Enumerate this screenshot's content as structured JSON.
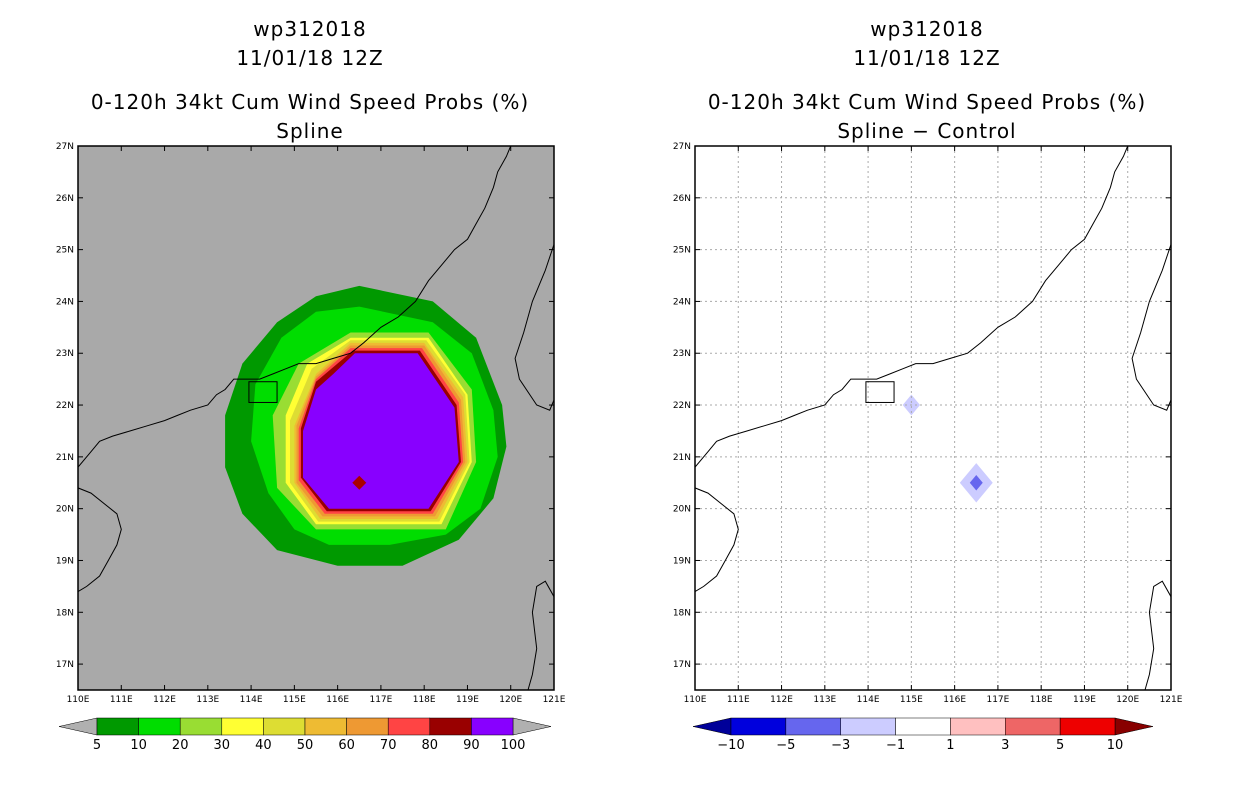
{
  "chart_data": [
    {
      "type": "heatmap",
      "storm_id": "wp312018",
      "init_time": "11/01/18 12Z",
      "title": "0-120h 34kt Cum Wind Speed Probs (%)",
      "subtitle": "Spline",
      "x_range": [
        110,
        121
      ],
      "y_range": [
        16.5,
        27
      ],
      "x_ticks": [
        110,
        111,
        112,
        113,
        114,
        115,
        116,
        117,
        118,
        119,
        120,
        121
      ],
      "y_ticks": [
        17,
        18,
        19,
        20,
        21,
        22,
        23,
        24,
        25,
        26,
        27
      ],
      "x_tick_labels": [
        "110E",
        "111E",
        "112E",
        "113E",
        "114E",
        "115E",
        "116E",
        "117E",
        "118E",
        "119E",
        "120E",
        "121E"
      ],
      "y_tick_labels": [
        "17N",
        "18N",
        "19N",
        "20N",
        "21N",
        "22N",
        "23N",
        "24N",
        "25N",
        "26N",
        "27N"
      ],
      "background_color": "#a9a9a9",
      "center": [
        116.5,
        20.5
      ],
      "probability_contours": [
        {
          "level": 5,
          "color": "#009900",
          "outline": [
            [
              116.5,
              24.3
            ],
            [
              118.2,
              24.0
            ],
            [
              119.2,
              23.3
            ],
            [
              119.8,
              22.0
            ],
            [
              119.9,
              21.2
            ],
            [
              119.6,
              20.2
            ],
            [
              118.8,
              19.4
            ],
            [
              117.5,
              18.9
            ],
            [
              116.0,
              18.9
            ],
            [
              114.6,
              19.2
            ],
            [
              113.8,
              19.9
            ],
            [
              113.4,
              20.8
            ],
            [
              113.4,
              21.8
            ],
            [
              113.8,
              22.8
            ],
            [
              114.6,
              23.6
            ],
            [
              115.5,
              24.1
            ]
          ]
        },
        {
          "level": 10,
          "color": "#00dd00",
          "outline": [
            [
              116.5,
              23.9
            ],
            [
              118.2,
              23.6
            ],
            [
              119.1,
              23.0
            ],
            [
              119.6,
              21.9
            ],
            [
              119.7,
              21.0
            ],
            [
              119.3,
              20.0
            ],
            [
              118.5,
              19.5
            ],
            [
              117.2,
              19.3
            ],
            [
              115.8,
              19.3
            ],
            [
              115.0,
              19.6
            ],
            [
              114.4,
              20.3
            ],
            [
              114.0,
              21.3
            ],
            [
              114.1,
              22.4
            ],
            [
              114.7,
              23.3
            ],
            [
              115.5,
              23.8
            ]
          ]
        },
        {
          "level": 20,
          "color": "#99dd33",
          "outline": [
            [
              116.3,
              23.4
            ],
            [
              118.1,
              23.4
            ],
            [
              119.1,
              22.3
            ],
            [
              119.2,
              20.9
            ],
            [
              118.5,
              19.6
            ],
            [
              115.5,
              19.6
            ],
            [
              114.6,
              20.4
            ],
            [
              114.5,
              21.8
            ],
            [
              115.1,
              22.8
            ]
          ]
        },
        {
          "level": 30,
          "color": "#ffff33",
          "outline": [
            [
              116.3,
              23.3
            ],
            [
              118.1,
              23.3
            ],
            [
              119.0,
              22.2
            ],
            [
              119.1,
              20.9
            ],
            [
              118.4,
              19.7
            ],
            [
              115.5,
              19.7
            ],
            [
              114.8,
              20.5
            ],
            [
              114.8,
              21.8
            ],
            [
              115.3,
              22.8
            ]
          ]
        },
        {
          "level": 40,
          "color": "#dddd33",
          "outline": [
            [
              116.3,
              23.25
            ],
            [
              118.05,
              23.25
            ],
            [
              118.95,
              22.2
            ],
            [
              119.05,
              20.9
            ],
            [
              118.35,
              19.75
            ],
            [
              115.55,
              19.75
            ],
            [
              114.9,
              20.5
            ],
            [
              114.9,
              21.7
            ],
            [
              115.4,
              22.7
            ]
          ]
        },
        {
          "level": 50,
          "color": "#eebb33",
          "outline": [
            [
              116.3,
              23.2
            ],
            [
              118.0,
              23.2
            ],
            [
              118.9,
              22.15
            ],
            [
              119.0,
              20.9
            ],
            [
              118.3,
              19.8
            ],
            [
              115.6,
              19.8
            ],
            [
              115.0,
              20.5
            ],
            [
              115.0,
              21.6
            ],
            [
              115.5,
              22.6
            ]
          ]
        },
        {
          "level": 60,
          "color": "#ee9933",
          "outline": [
            [
              116.3,
              23.15
            ],
            [
              118.0,
              23.15
            ],
            [
              118.85,
              22.1
            ],
            [
              118.95,
              20.9
            ],
            [
              118.25,
              19.85
            ],
            [
              115.65,
              19.85
            ],
            [
              115.05,
              20.5
            ],
            [
              115.05,
              21.6
            ],
            [
              115.5,
              22.55
            ]
          ]
        },
        {
          "level": 70,
          "color": "#ff4444",
          "outline": [
            [
              116.3,
              23.1
            ],
            [
              117.95,
              23.1
            ],
            [
              118.8,
              22.05
            ],
            [
              118.9,
              20.9
            ],
            [
              118.2,
              19.9
            ],
            [
              115.7,
              19.9
            ],
            [
              115.1,
              20.55
            ],
            [
              115.1,
              21.55
            ],
            [
              115.5,
              22.5
            ]
          ]
        },
        {
          "level": 80,
          "color": "#990000",
          "outline": [
            [
              116.35,
              23.05
            ],
            [
              117.9,
              23.05
            ],
            [
              118.75,
              22.0
            ],
            [
              118.85,
              20.9
            ],
            [
              118.15,
              19.95
            ],
            [
              115.75,
              19.95
            ],
            [
              115.15,
              20.6
            ],
            [
              115.15,
              21.55
            ],
            [
              115.5,
              22.45
            ]
          ]
        },
        {
          "level": 90,
          "color": "#8800ff",
          "outline": [
            [
              116.4,
              23.0
            ],
            [
              117.85,
              23.0
            ],
            [
              118.7,
              21.95
            ],
            [
              118.8,
              20.9
            ],
            [
              118.1,
              20.0
            ],
            [
              115.8,
              20.0
            ],
            [
              115.2,
              20.6
            ],
            [
              115.2,
              21.5
            ],
            [
              115.5,
              22.3
            ],
            [
              115.9,
              22.6
            ]
          ]
        }
      ],
      "center_marker_color": "#aa0000",
      "colorbar": {
        "labels": [
          "5",
          "10",
          "20",
          "30",
          "40",
          "50",
          "60",
          "70",
          "80",
          "90",
          "100"
        ],
        "colors": [
          "#009900",
          "#00dd00",
          "#99dd33",
          "#ffff33",
          "#dddd33",
          "#eebb33",
          "#ee9933",
          "#ff4444",
          "#990000",
          "#8800ff"
        ],
        "extend_low_color": "#b0b0b0",
        "extend_high_color": "#b0b0b0"
      }
    },
    {
      "type": "heatmap",
      "storm_id": "wp312018",
      "init_time": "11/01/18 12Z",
      "title": "0-120h 34kt Cum Wind Speed Probs (%)",
      "subtitle": "Spline − Control",
      "x_range": [
        110,
        121
      ],
      "y_range": [
        16.5,
        27
      ],
      "x_ticks": [
        110,
        111,
        112,
        113,
        114,
        115,
        116,
        117,
        118,
        119,
        120,
        121
      ],
      "y_ticks": [
        17,
        18,
        19,
        20,
        21,
        22,
        23,
        24,
        25,
        26,
        27
      ],
      "x_tick_labels": [
        "110E",
        "111E",
        "112E",
        "113E",
        "114E",
        "115E",
        "116E",
        "117E",
        "118E",
        "119E",
        "120E",
        "121E"
      ],
      "y_tick_labels": [
        "17N",
        "18N",
        "19N",
        "20N",
        "21N",
        "22N",
        "23N",
        "24N",
        "25N",
        "26N",
        "27N"
      ],
      "background_color": "#ffffff",
      "grid": true,
      "anomalies": [
        {
          "lon": 115.0,
          "lat": 22.0,
          "half_width": 0.2,
          "value": -1,
          "color": "#ccccff"
        },
        {
          "lon": 116.5,
          "lat": 20.5,
          "half_width": 0.38,
          "value": -1,
          "color": "#ccccff"
        },
        {
          "lon": 116.5,
          "lat": 20.5,
          "half_width": 0.15,
          "value": -3,
          "color": "#6666ee"
        }
      ],
      "colorbar": {
        "labels": [
          "−10",
          "−5",
          "−3",
          "−1",
          "1",
          "3",
          "5",
          "10"
        ],
        "colors": [
          "#0000dd",
          "#6666ee",
          "#ccccff",
          "#ffffff",
          "#ffc0c0",
          "#ee6666",
          "#ee0000"
        ],
        "extend_low_color": "#000099",
        "extend_high_color": "#880000"
      }
    }
  ]
}
